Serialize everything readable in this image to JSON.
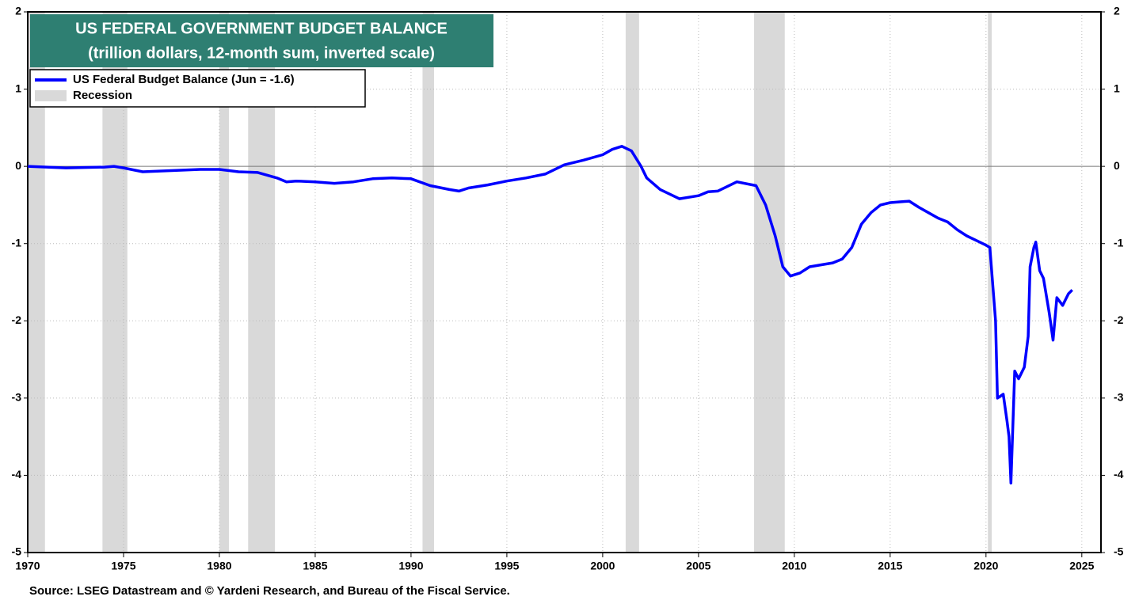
{
  "chart_data": {
    "type": "line",
    "title": "US FEDERAL GOVERNMENT BUDGET BALANCE",
    "subtitle": "(trillion dollars, 12-month sum, inverted scale)",
    "source": "Source: LSEG Datastream and © Yardeni Research, and Bureau of the Fiscal Service.",
    "xlim": [
      1970,
      2026
    ],
    "xticks": [
      1970,
      1975,
      1980,
      1985,
      1990,
      1995,
      2000,
      2005,
      2010,
      2015,
      2020,
      2025
    ],
    "ylim": [
      -5,
      2
    ],
    "yticks": [
      2,
      1,
      0,
      -1,
      -2,
      -3,
      -4,
      -5
    ],
    "grid": true,
    "legend": "upper left",
    "x": [
      1970,
      1972,
      1974,
      1974.5,
      1975,
      1976,
      1977,
      1978,
      1979,
      1980,
      1981,
      1982,
      1983,
      1983.5,
      1984,
      1985,
      1986,
      1987,
      1988,
      1989,
      1990,
      1991,
      1992,
      1992.5,
      1993,
      1994,
      1995,
      1996,
      1997,
      1998,
      1999,
      2000,
      2000.5,
      2001,
      2001.5,
      2002,
      2002.3,
      2003,
      2004,
      2005,
      2005.5,
      2006,
      2007,
      2008,
      2008.5,
      2009,
      2009.4,
      2009.8,
      2010.3,
      2010.8,
      2011.5,
      2012,
      2012.5,
      2013,
      2013.5,
      2014,
      2014.5,
      2015,
      2015.5,
      2016,
      2016.5,
      2017,
      2017.5,
      2018,
      2018.5,
      2019,
      2019.5,
      2020,
      2020.2,
      2020.5,
      2020.6,
      2020.9,
      2021.1,
      2021.2,
      2021.3,
      2021.5,
      2021.7,
      2022,
      2022.2,
      2022.3,
      2022.5,
      2022.6,
      2022.8,
      2023,
      2023.3,
      2023.5,
      2023.7,
      2024,
      2024.3,
      2024.5
    ],
    "series": [
      {
        "name": "US Federal Budget Balance (Jun = -1.6)",
        "color": "#0000ff",
        "values": [
          0.0,
          -0.02,
          -0.01,
          0.0,
          -0.02,
          -0.07,
          -0.06,
          -0.05,
          -0.04,
          -0.04,
          -0.07,
          -0.08,
          -0.15,
          -0.2,
          -0.19,
          -0.2,
          -0.22,
          -0.2,
          -0.16,
          -0.15,
          -0.16,
          -0.25,
          -0.3,
          -0.32,
          -0.28,
          -0.24,
          -0.19,
          -0.15,
          -0.1,
          0.02,
          0.08,
          0.15,
          0.22,
          0.26,
          0.2,
          0.0,
          -0.15,
          -0.3,
          -0.42,
          -0.38,
          -0.33,
          -0.32,
          -0.2,
          -0.25,
          -0.5,
          -0.9,
          -1.3,
          -1.42,
          -1.38,
          -1.3,
          -1.27,
          -1.25,
          -1.2,
          -1.05,
          -0.75,
          -0.6,
          -0.5,
          -0.47,
          -0.46,
          -0.45,
          -0.53,
          -0.6,
          -0.67,
          -0.72,
          -0.82,
          -0.9,
          -0.96,
          -1.02,
          -1.05,
          -2.0,
          -3.0,
          -2.95,
          -3.3,
          -3.5,
          -4.1,
          -2.65,
          -2.75,
          -2.6,
          -2.2,
          -1.3,
          -1.05,
          -0.98,
          -1.35,
          -1.45,
          -1.9,
          -2.25,
          -1.7,
          -1.8,
          -1.65,
          -1.6
        ]
      }
    ],
    "recessions": {
      "name": "Recession",
      "color": "#d9d9d9",
      "periods": [
        [
          1969.9,
          1970.9
        ],
        [
          1973.9,
          1975.2
        ],
        [
          1980.0,
          1980.5
        ],
        [
          1981.5,
          1982.9
        ],
        [
          1990.6,
          1991.2
        ],
        [
          2001.2,
          2001.9
        ],
        [
          2007.9,
          2009.5
        ],
        [
          2020.1,
          2020.3
        ]
      ]
    }
  }
}
